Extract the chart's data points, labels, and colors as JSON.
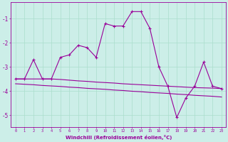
{
  "xlabel": "Windchill (Refroidissement éolien,°C)",
  "background_color": "#cceee8",
  "grid_color": "#aaddcc",
  "line_color": "#990099",
  "x_values": [
    0,
    1,
    2,
    3,
    4,
    5,
    6,
    7,
    8,
    9,
    10,
    11,
    12,
    13,
    14,
    15,
    16,
    17,
    18,
    19,
    20,
    21,
    22,
    23
  ],
  "series1": [
    -3.5,
    -3.5,
    -2.7,
    -3.5,
    -3.5,
    -2.6,
    -2.5,
    -2.1,
    -2.2,
    -2.6,
    -1.2,
    -1.3,
    -1.3,
    -0.7,
    -0.7,
    -1.4,
    -3.0,
    -3.8,
    -5.1,
    -4.3,
    -3.8,
    -2.8,
    -3.8,
    -3.9
  ],
  "series2": [
    -3.5,
    -3.5,
    -3.5,
    -3.5,
    -3.5,
    -3.52,
    -3.55,
    -3.58,
    -3.6,
    -3.63,
    -3.65,
    -3.67,
    -3.7,
    -3.72,
    -3.74,
    -3.76,
    -3.78,
    -3.8,
    -3.82,
    -3.84,
    -3.86,
    -3.87,
    -3.88,
    -3.9
  ],
  "series3": [
    -3.7,
    -3.72,
    -3.74,
    -3.77,
    -3.79,
    -3.81,
    -3.84,
    -3.86,
    -3.89,
    -3.91,
    -3.93,
    -3.96,
    -3.98,
    -4.01,
    -4.03,
    -4.06,
    -4.08,
    -4.1,
    -4.13,
    -4.15,
    -4.18,
    -4.2,
    -4.22,
    -4.25
  ],
  "ylim": [
    -5.5,
    -0.3
  ],
  "yticks": [
    -5,
    -4,
    -3,
    -2,
    -1
  ],
  "xlim": [
    -0.5,
    23.5
  ]
}
